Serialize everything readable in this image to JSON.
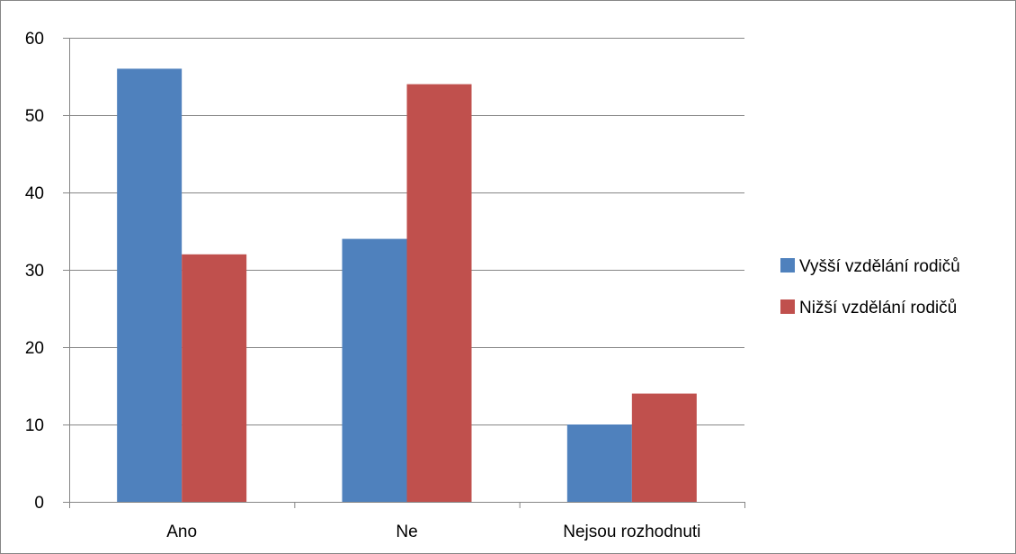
{
  "chart_data": {
    "type": "bar",
    "categories": [
      "Ano",
      "Ne",
      "Nejsou rozhodnuti"
    ],
    "series": [
      {
        "name": "Vyšší vzdělání rodičů",
        "values": [
          56,
          34,
          10
        ],
        "color": "#4F81BD"
      },
      {
        "name": "Nižší vzdělání rodičů",
        "values": [
          32,
          54,
          14
        ],
        "color": "#C0504D"
      }
    ],
    "title": "",
    "xlabel": "",
    "ylabel": "",
    "ylim": [
      0,
      60
    ],
    "yticks": [
      0,
      10,
      20,
      30,
      40,
      50,
      60
    ],
    "grid": true,
    "legend_position": "right"
  }
}
